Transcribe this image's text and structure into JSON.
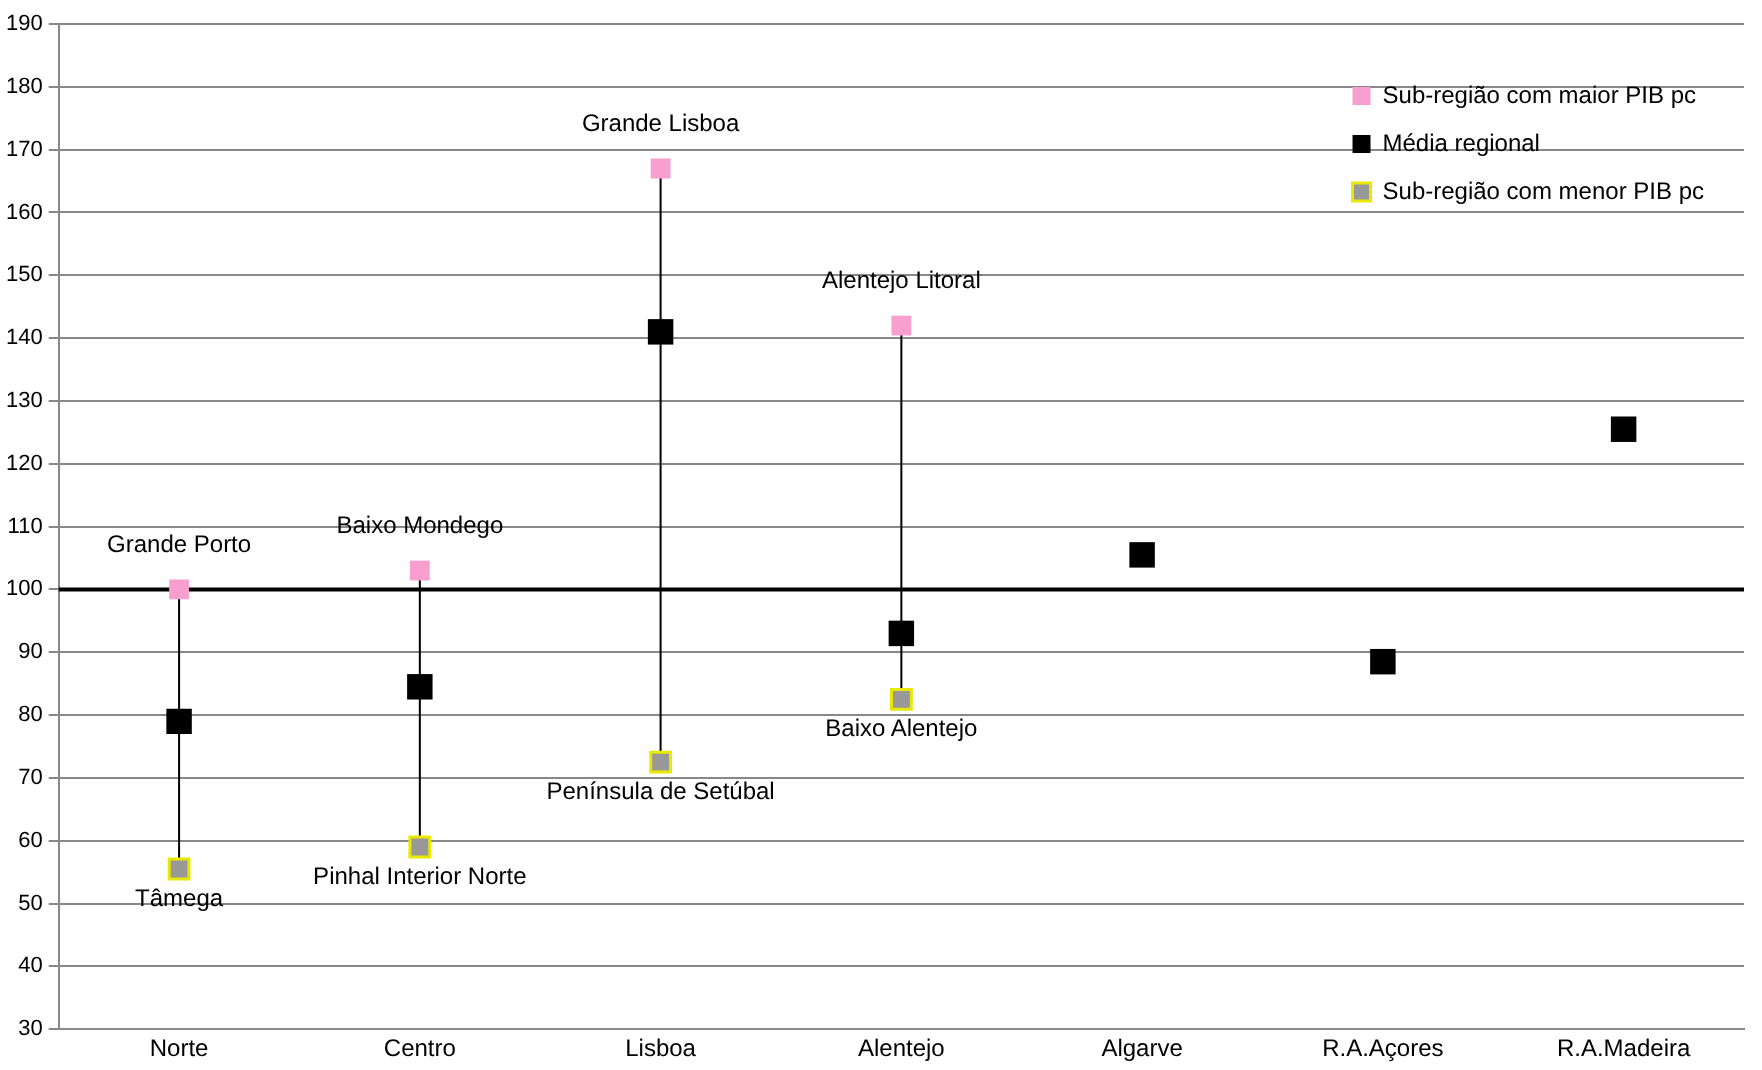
{
  "chart_data": {
    "type": "scatter",
    "categories": [
      "Norte",
      "Centro",
      "Lisboa",
      "Alentejo",
      "Algarve",
      "R.A.Açores",
      "R.A.Madeira"
    ],
    "series": [
      {
        "name": "Sub-região com maior PIB pc",
        "color": "#f99fd0",
        "values": [
          100,
          103,
          167,
          142,
          null,
          null,
          null
        ]
      },
      {
        "name": "Média regional",
        "color": "#000000",
        "values": [
          79,
          84.5,
          141,
          93,
          105.5,
          88.5,
          125.5
        ]
      },
      {
        "name": "Sub-região com menor PIB pc",
        "color": "#999999",
        "values": [
          55.5,
          59,
          72.5,
          82.5,
          null,
          null,
          null
        ]
      }
    ],
    "ylim": [
      30,
      190
    ],
    "yticks": [
      30,
      40,
      50,
      60,
      70,
      80,
      90,
      100,
      110,
      120,
      130,
      140,
      150,
      160,
      170,
      180,
      190
    ],
    "grid": "y",
    "legend": "top right",
    "marker": "square",
    "ref_lines": [
      {
        "axis": "y",
        "value": 100
      }
    ],
    "annotations": [
      {
        "text": "Grande Porto",
        "x": "Norte",
        "y": 100
      },
      {
        "text": "Tâmega",
        "x": "Norte",
        "y": 55.5
      },
      {
        "text": "Baixo Mondego",
        "x": "Centro",
        "y": 103
      },
      {
        "text": "Pinhal Interior Norte",
        "x": "Centro",
        "y": 59
      },
      {
        "text": "Grande Lisboa",
        "x": "Lisboa",
        "y": 167
      },
      {
        "text": "Península de Setúbal",
        "x": "Lisboa",
        "y": 72.5
      },
      {
        "text": "Alentejo Litoral",
        "x": "Alentejo",
        "y": 142
      },
      {
        "text": "Baixo Alentejo",
        "x": "Alentejo",
        "y": 82.5
      }
    ]
  }
}
